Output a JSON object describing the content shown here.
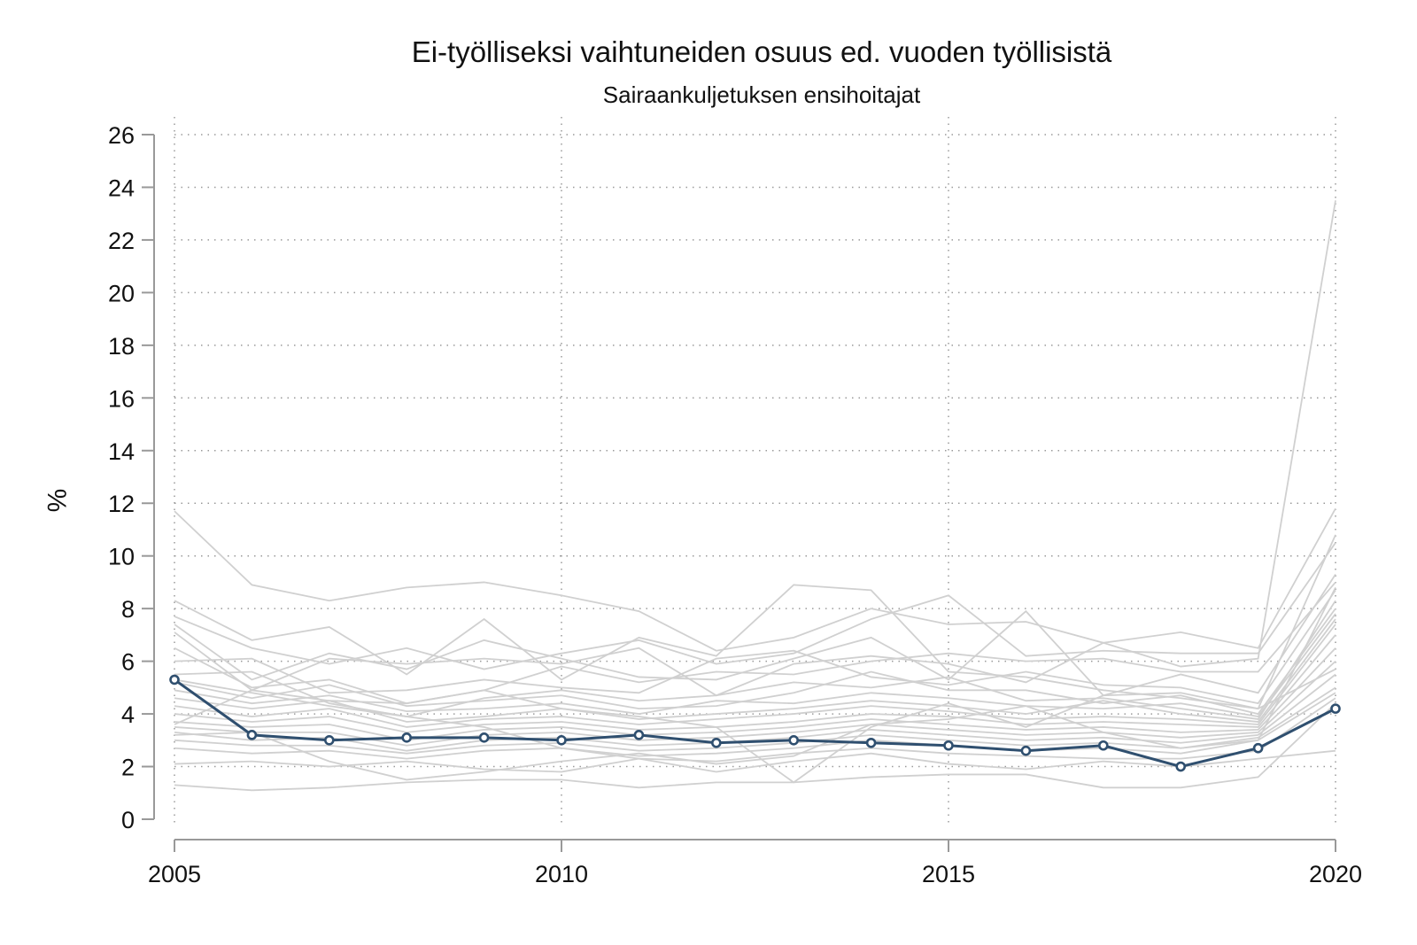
{
  "chart_data": {
    "type": "line",
    "title": "Ei-työlliseksi vaihtuneiden osuus ed. vuoden työllisistä",
    "subtitle": "Sairaankuljetuksen ensihoitajat",
    "xlabel": "",
    "ylabel": "%",
    "x": [
      2005,
      2006,
      2007,
      2008,
      2009,
      2010,
      2011,
      2012,
      2013,
      2014,
      2015,
      2016,
      2017,
      2018,
      2019,
      2020
    ],
    "xticks": [
      2005,
      2010,
      2015,
      2020
    ],
    "yticks": [
      0,
      2,
      4,
      6,
      8,
      10,
      12,
      14,
      16,
      18,
      20,
      22,
      24,
      26
    ],
    "xlim": [
      2005,
      2020
    ],
    "ylim": [
      0,
      26
    ],
    "grid": true,
    "highlight_color": "#2f4f6f",
    "background_color": "#d0d0d0",
    "highlight_series": {
      "values": [
        5.3,
        3.2,
        3.0,
        3.1,
        3.1,
        3.0,
        3.2,
        2.9,
        3.0,
        2.9,
        2.8,
        2.6,
        2.8,
        2.0,
        2.7,
        4.2
      ]
    },
    "background_series": [
      {
        "values": [
          11.7,
          8.9,
          8.3,
          8.8,
          9.0,
          8.5,
          7.9,
          6.4,
          6.9,
          8.0,
          7.4,
          7.5,
          6.7,
          7.1,
          6.5,
          11.8
        ]
      },
      {
        "values": [
          8.3,
          6.8,
          7.3,
          5.5,
          7.6,
          5.3,
          6.9,
          6.2,
          8.9,
          8.7,
          5.6,
          5.4,
          4.9,
          4.6,
          4.2,
          10.8
        ]
      },
      {
        "values": [
          7.7,
          6.5,
          5.9,
          6.5,
          5.7,
          6.3,
          6.8,
          5.9,
          6.3,
          7.6,
          8.5,
          6.2,
          6.4,
          6.3,
          6.3,
          10.5
        ]
      },
      {
        "values": [
          7.4,
          5.3,
          6.3,
          5.7,
          6.8,
          6.1,
          5.4,
          5.3,
          6.1,
          6.9,
          5.3,
          7.9,
          4.7,
          5.5,
          4.8,
          9.3
        ]
      },
      {
        "values": [
          7.1,
          4.9,
          6.1,
          5.9,
          6.1,
          5.9,
          6.5,
          4.7,
          5.9,
          6.2,
          5.9,
          5.2,
          6.7,
          5.8,
          6.1,
          23.5
        ]
      },
      {
        "values": [
          6.5,
          5.0,
          5.3,
          4.4,
          4.9,
          5.8,
          5.2,
          5.6,
          5.5,
          6.0,
          6.3,
          6.0,
          6.1,
          5.6,
          5.6,
          9.0
        ]
      },
      {
        "values": [
          6.0,
          6.1,
          4.8,
          4.9,
          5.3,
          5.0,
          4.8,
          6.1,
          6.4,
          5.4,
          5.1,
          5.6,
          5.1,
          5.0,
          4.4,
          8.7
        ]
      },
      {
        "values": [
          5.5,
          5.6,
          4.4,
          3.9,
          4.6,
          4.9,
          4.5,
          4.7,
          5.2,
          5.0,
          5.4,
          4.5,
          4.6,
          4.2,
          3.8,
          8.3
        ]
      },
      {
        "values": [
          5.2,
          4.6,
          5.1,
          4.3,
          4.5,
          4.7,
          4.2,
          4.3,
          4.8,
          5.6,
          4.9,
          4.9,
          4.4,
          4.7,
          4.0,
          8.0
        ]
      },
      {
        "values": [
          4.9,
          4.4,
          4.7,
          4.1,
          4.2,
          4.4,
          4.0,
          4.5,
          4.4,
          4.8,
          4.6,
          4.3,
          4.2,
          4.4,
          3.9,
          7.8
        ]
      },
      {
        "values": [
          4.6,
          4.2,
          4.5,
          3.7,
          3.9,
          4.2,
          3.8,
          4.0,
          4.2,
          4.5,
          4.3,
          4.0,
          4.5,
          4.0,
          3.7,
          7.6
        ]
      },
      {
        "values": [
          4.3,
          3.9,
          4.2,
          3.5,
          3.8,
          3.9,
          3.6,
          3.8,
          4.0,
          4.3,
          4.1,
          3.8,
          3.9,
          3.8,
          3.6,
          7.4
        ]
      },
      {
        "values": [
          4.0,
          3.7,
          3.9,
          3.3,
          3.6,
          3.7,
          3.4,
          3.5,
          3.7,
          4.0,
          3.9,
          3.6,
          3.7,
          3.6,
          3.5,
          7.0
        ]
      },
      {
        "values": [
          3.7,
          3.5,
          3.6,
          3.0,
          3.4,
          3.5,
          3.2,
          3.3,
          3.5,
          3.8,
          3.6,
          3.4,
          3.5,
          3.3,
          3.4,
          6.5
        ]
      },
      {
        "values": [
          3.5,
          3.3,
          3.3,
          2.8,
          3.2,
          3.3,
          3.0,
          3.1,
          3.3,
          3.6,
          3.4,
          3.2,
          3.3,
          3.1,
          3.3,
          6.0
        ]
      },
      {
        "values": [
          3.3,
          3.0,
          3.1,
          2.6,
          3.0,
          3.1,
          2.8,
          2.9,
          3.1,
          3.4,
          3.2,
          3.0,
          3.1,
          2.9,
          3.2,
          5.5
        ]
      },
      {
        "values": [
          3.0,
          2.8,
          2.8,
          2.5,
          2.8,
          2.9,
          2.6,
          2.7,
          2.9,
          3.2,
          3.0,
          2.8,
          2.9,
          2.7,
          3.1,
          5.0
        ]
      },
      {
        "values": [
          2.7,
          2.5,
          2.6,
          2.3,
          2.6,
          2.7,
          2.4,
          2.5,
          2.7,
          3.0,
          2.8,
          2.6,
          2.7,
          2.5,
          3.0,
          4.8
        ]
      },
      {
        "values": [
          2.1,
          2.2,
          2.0,
          2.2,
          1.9,
          1.8,
          2.3,
          2.2,
          2.5,
          2.7,
          2.5,
          2.4,
          2.3,
          2.3,
          2.6,
          4.6
        ]
      },
      {
        "values": [
          1.3,
          1.1,
          1.2,
          1.4,
          1.5,
          1.5,
          1.2,
          1.4,
          1.4,
          1.6,
          1.7,
          1.7,
          1.2,
          1.2,
          1.6,
          4.4
        ]
      },
      {
        "values": [
          3.6,
          4.9,
          4.5,
          4.4,
          4.9,
          4.2,
          3.9,
          3.5,
          1.4,
          3.5,
          4.4,
          3.5,
          4.7,
          4.8,
          4.2,
          5.7
        ]
      },
      {
        "values": [
          5.3,
          4.8,
          4.3,
          3.9,
          3.5,
          2.7,
          2.3,
          1.8,
          2.2,
          2.5,
          2.1,
          1.9,
          2.2,
          2.0,
          2.3,
          2.6
        ]
      },
      {
        "values": [
          3.2,
          3.3,
          2.2,
          1.5,
          1.8,
          2.2,
          2.5,
          2.1,
          2.4,
          3.6,
          3.8,
          4.3,
          3.3,
          2.7,
          3.0,
          8.8
        ]
      }
    ]
  }
}
